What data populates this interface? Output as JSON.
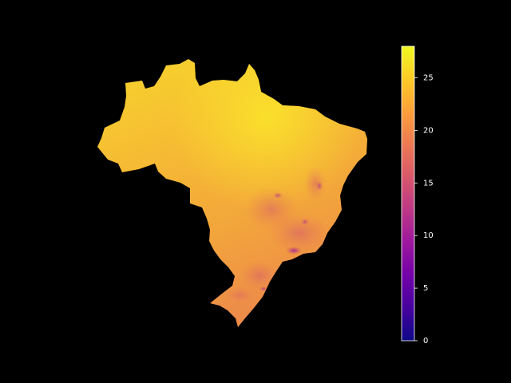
{
  "map": {
    "colormap": "plasma",
    "background_color": "#000000",
    "colorbar": {
      "min": 0,
      "max": 28,
      "ticks": [
        {
          "value": 0,
          "label": "0"
        },
        {
          "value": 5,
          "label": "5"
        },
        {
          "value": 10,
          "label": "10"
        },
        {
          "value": 15,
          "label": "15"
        },
        {
          "value": 20,
          "label": "20"
        },
        {
          "value": 25,
          "label": "25"
        }
      ],
      "stops": [
        "#0d0887",
        "#46039f",
        "#7201a8",
        "#9c179e",
        "#bd3786",
        "#d8576b",
        "#ed7953",
        "#fb9f3a",
        "#fdca26",
        "#f0f921"
      ]
    }
  }
}
